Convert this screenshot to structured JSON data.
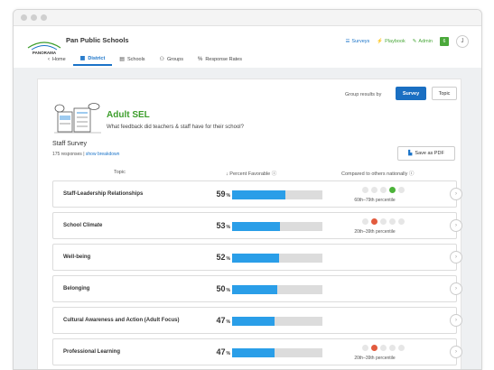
{
  "header": {
    "school_name": "Pan Public Schools",
    "logo_text": "PANORAMA",
    "nav_right": {
      "surveys": "Surveys",
      "playbook": "Playbook",
      "admin": "Admin",
      "badge": "6",
      "avatar": "J"
    }
  },
  "tabs": [
    {
      "label": "Home",
      "icon": "chevron-left-icon"
    },
    {
      "label": "District",
      "icon": "building-icon",
      "active": true
    },
    {
      "label": "Schools",
      "icon": "school-icon"
    },
    {
      "label": "Groups",
      "icon": "groups-icon"
    },
    {
      "label": "Response Rates",
      "icon": "percent-icon"
    }
  ],
  "controls": {
    "group_by_label": "Group results by",
    "survey_button": "Survey",
    "topic_button": "Topic",
    "save_pdf": "Save as PDF"
  },
  "section": {
    "title": "Adult SEL",
    "subtitle": "What feedback did teachers & staff have for their school?",
    "survey_name": "Staff Survey",
    "responses": "175 responses",
    "separator": " | ",
    "show_breakdown": "show breakdown"
  },
  "table": {
    "col_topic": "Topic",
    "col_percent": "Percent Favorable",
    "col_compared": "Compared to others nationally",
    "rows": [
      {
        "topic": "Staff-Leadership Relationships",
        "percent": "59",
        "value": 59,
        "dot": 4,
        "dot_color": "green",
        "percentile": "60th–79th percentile"
      },
      {
        "topic": "School Climate",
        "percent": "53",
        "value": 53,
        "dot": 2,
        "dot_color": "red",
        "percentile": "20th–39th percentile"
      },
      {
        "topic": "Well-being",
        "percent": "52",
        "value": 52,
        "dot": 0,
        "dot_color": "",
        "percentile": ""
      },
      {
        "topic": "Belonging",
        "percent": "50",
        "value": 50,
        "dot": 0,
        "dot_color": "",
        "percentile": ""
      },
      {
        "topic": "Cultural Awareness and Action (Adult Focus)",
        "percent": "47",
        "value": 47,
        "dot": 0,
        "dot_color": "",
        "percentile": ""
      },
      {
        "topic": "Professional Learning",
        "percent": "47",
        "value": 47,
        "dot": 2,
        "dot_color": "red",
        "percentile": "20th–39th percentile"
      }
    ]
  },
  "colors": {
    "accent_blue": "#1a6fc2",
    "bar_blue": "#2a9ee8",
    "sel_green": "#3d9e2c",
    "dot_green": "#4cb33a",
    "dot_red": "#e25b3e"
  }
}
